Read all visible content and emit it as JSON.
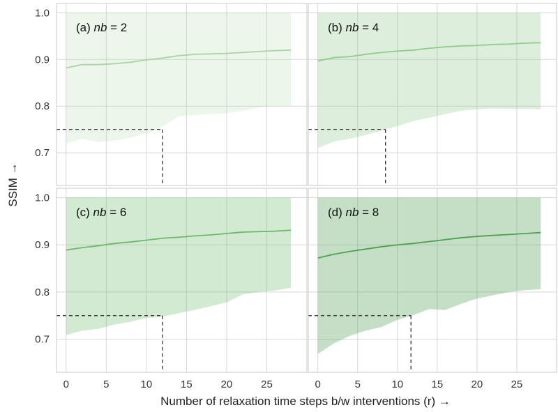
{
  "chart_data": {
    "type": "area",
    "ylabel": "SSIM →",
    "xlabel": "Number of relaxation time steps b/w interventions (r) →",
    "x_ticks": [
      0,
      5,
      10,
      15,
      20,
      25
    ],
    "y_ticks": [
      0.7,
      0.8,
      0.9,
      1.0
    ],
    "y_tick_labels": [
      "0.7",
      "0.8",
      "0.9",
      "1.0"
    ],
    "xlim": [
      -1.2,
      30
    ],
    "ylim": [
      0.63,
      1.02
    ],
    "grid": true,
    "x": [
      0,
      2,
      4,
      6,
      8,
      10,
      12,
      14,
      16,
      18,
      20,
      22,
      24,
      26,
      28
    ],
    "threshold_y": 0.75,
    "panels": [
      {
        "title_prefix": "(a) ",
        "title_var": "nb",
        "title_suffix": " = 2",
        "color": "#a8d5a2",
        "fill_opacity": 0.22,
        "mean": [
          0.882,
          0.889,
          0.889,
          0.891,
          0.894,
          0.899,
          0.903,
          0.908,
          0.911,
          0.912,
          0.913,
          0.915,
          0.917,
          0.919,
          0.92
        ],
        "lower": [
          0.72,
          0.73,
          0.723,
          0.726,
          0.732,
          0.742,
          0.756,
          0.778,
          0.781,
          0.783,
          0.785,
          0.79,
          0.797,
          0.8,
          0.8
        ],
        "upper": [
          1.0,
          1.0,
          1.0,
          1.0,
          1.0,
          1.0,
          1.0,
          1.0,
          1.0,
          1.0,
          1.0,
          1.0,
          1.0,
          1.0,
          1.0
        ],
        "threshold_x": 12
      },
      {
        "title_prefix": "(b) ",
        "title_var": "nb",
        "title_suffix": " = 4",
        "color": "#8fcb8a",
        "fill_opacity": 0.3,
        "mean": [
          0.897,
          0.904,
          0.906,
          0.911,
          0.915,
          0.918,
          0.92,
          0.924,
          0.927,
          0.929,
          0.93,
          0.932,
          0.933,
          0.935,
          0.936
        ],
        "lower": [
          0.71,
          0.724,
          0.73,
          0.738,
          0.748,
          0.757,
          0.768,
          0.775,
          0.783,
          0.79,
          0.793,
          0.795,
          0.794,
          0.794,
          0.793
        ],
        "upper": [
          1.0,
          1.0,
          1.0,
          1.0,
          1.0,
          1.0,
          1.0,
          1.0,
          1.0,
          1.0,
          1.0,
          1.0,
          1.0,
          1.0,
          1.0
        ],
        "threshold_x": 8.5
      },
      {
        "title_prefix": "(c) ",
        "title_var": "nb",
        "title_suffix": " = 6",
        "color": "#6cb86b",
        "fill_opacity": 0.3,
        "mean": [
          0.889,
          0.894,
          0.898,
          0.903,
          0.906,
          0.91,
          0.914,
          0.916,
          0.919,
          0.921,
          0.924,
          0.927,
          0.928,
          0.929,
          0.931
        ],
        "lower": [
          0.709,
          0.718,
          0.722,
          0.731,
          0.737,
          0.745,
          0.748,
          0.755,
          0.762,
          0.77,
          0.778,
          0.795,
          0.8,
          0.803,
          0.809
        ],
        "upper": [
          1.0,
          1.0,
          1.0,
          1.0,
          1.0,
          1.0,
          1.0,
          1.0,
          1.0,
          1.0,
          1.0,
          1.0,
          1.0,
          1.0,
          1.0
        ],
        "threshold_x": 12
      },
      {
        "title_prefix": "(d) ",
        "title_var": "nb",
        "title_suffix": " = 8",
        "color": "#4e9e54",
        "fill_opacity": 0.33,
        "mean": [
          0.872,
          0.88,
          0.886,
          0.891,
          0.896,
          0.9,
          0.903,
          0.907,
          0.911,
          0.915,
          0.918,
          0.92,
          0.922,
          0.924,
          0.926
        ],
        "lower": [
          0.669,
          0.691,
          0.707,
          0.718,
          0.726,
          0.741,
          0.751,
          0.764,
          0.762,
          0.775,
          0.786,
          0.793,
          0.8,
          0.804,
          0.806
        ],
        "upper": [
          1.0,
          1.0,
          1.0,
          1.0,
          1.0,
          1.0,
          1.0,
          1.0,
          1.0,
          1.0,
          1.0,
          1.0,
          1.0,
          1.0,
          1.0
        ],
        "threshold_x": 11.7
      }
    ]
  }
}
